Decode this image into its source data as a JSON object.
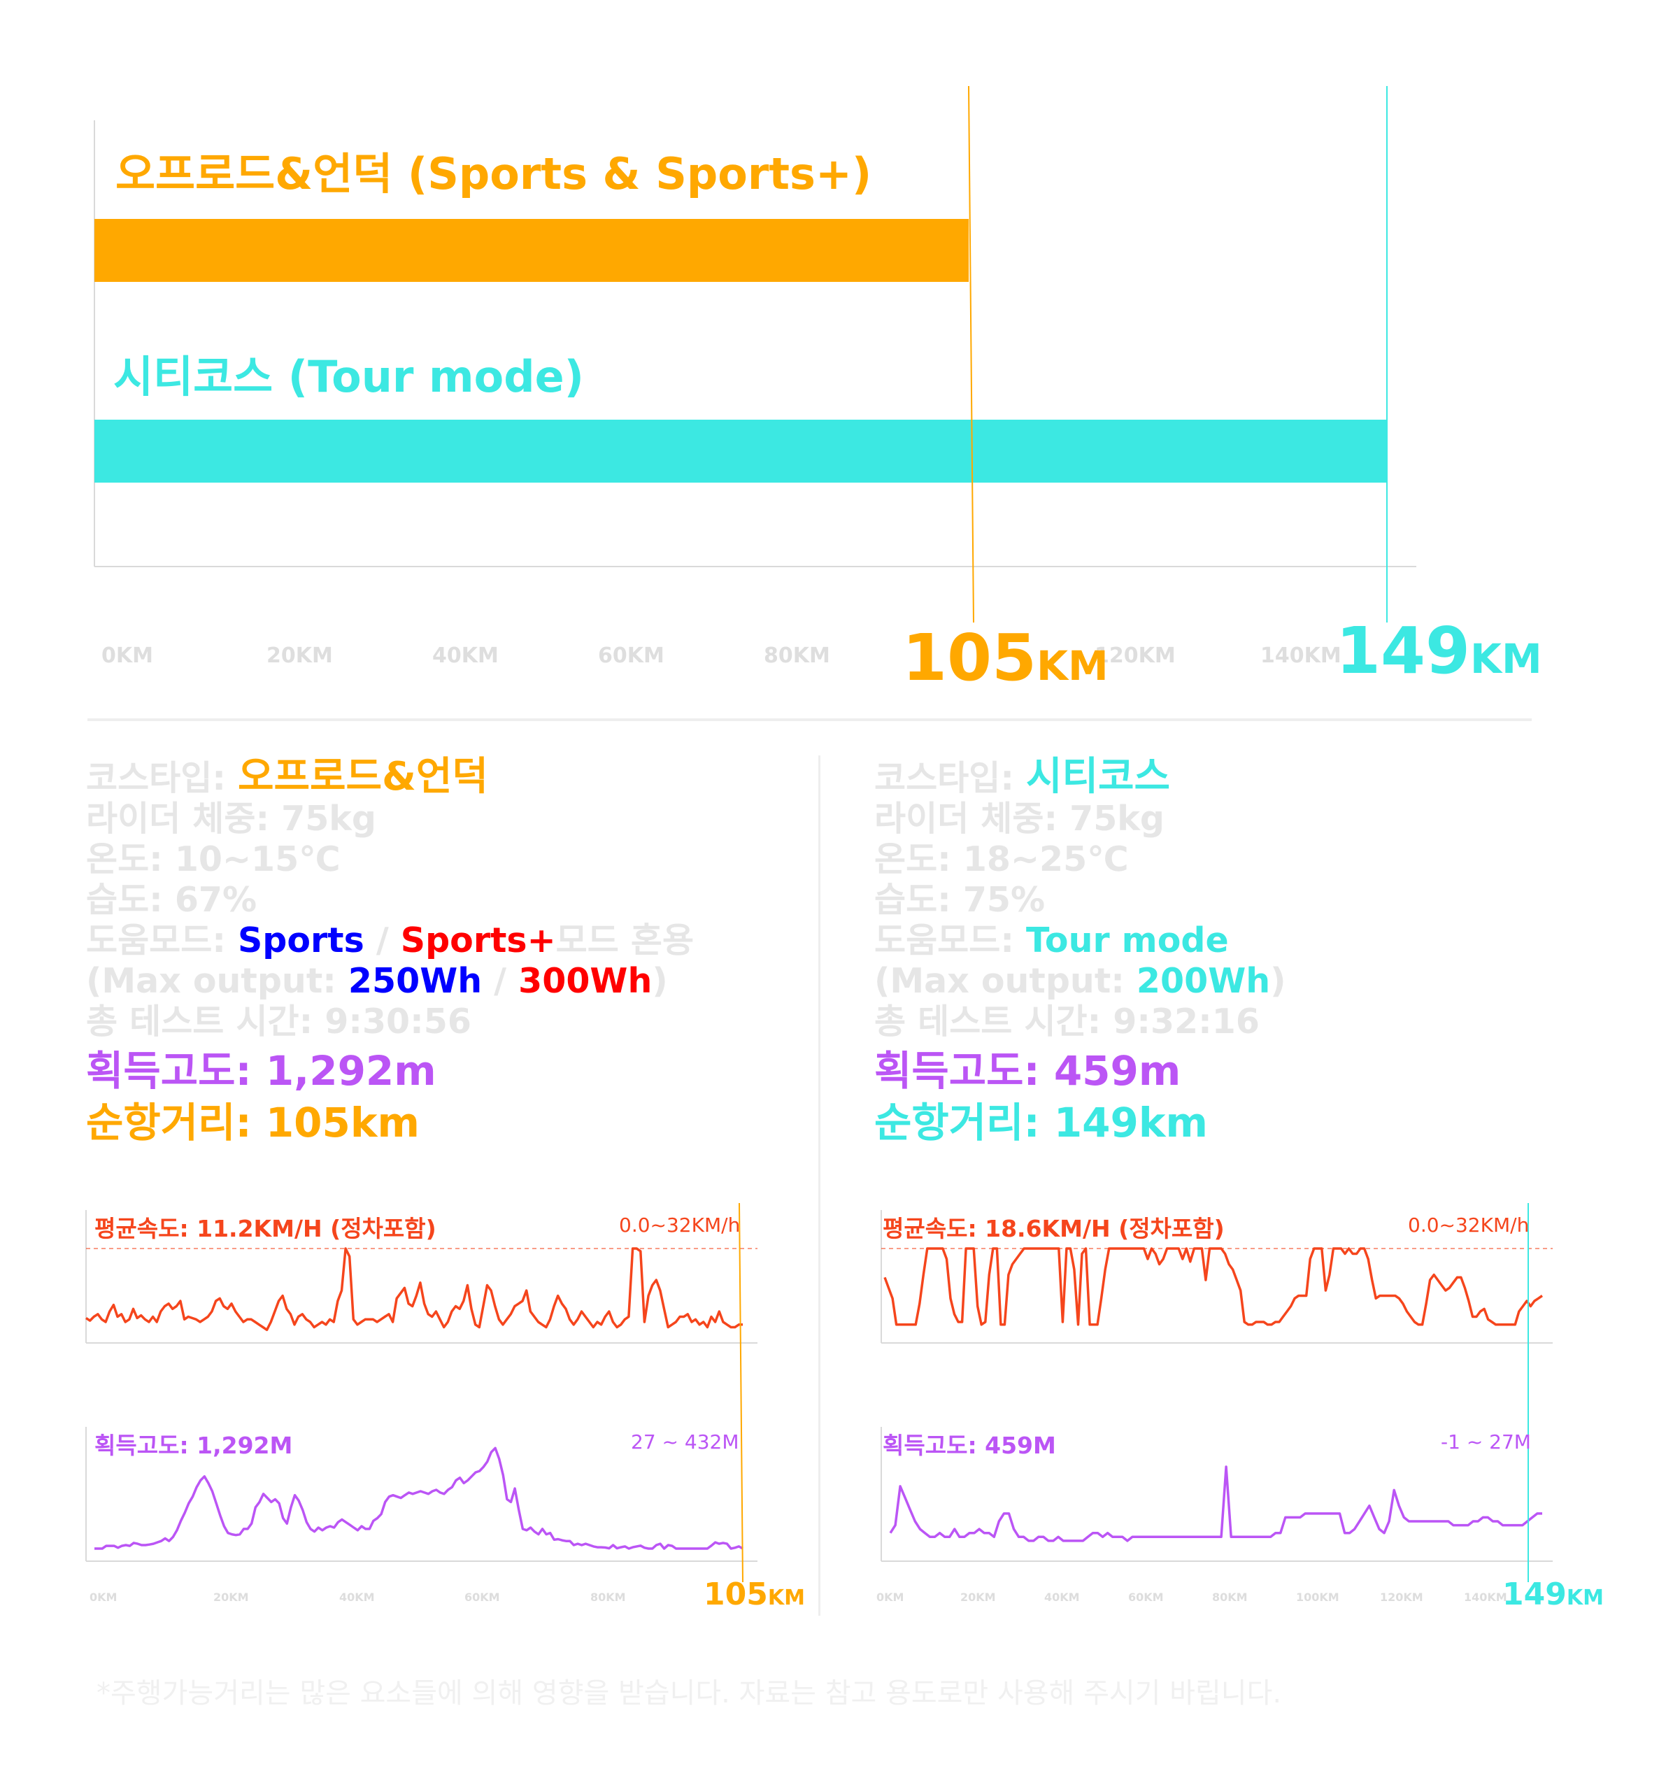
{
  "colors": {
    "offroad": "#ffa800",
    "city": "#3ce8e2",
    "sports": "#0000ff",
    "sports_plus": "#ff0000",
    "speed": "#f5451c",
    "elevation": "#bb55f5",
    "muted": "#e6e6e6",
    "axis": "#d9d9d9"
  },
  "chart_data": [
    {
      "type": "bar",
      "orientation": "horizontal",
      "categories": [
        "오프로드&언덕 (Sports & Sports+)",
        "시티코스 (Tour mode)"
      ],
      "values": [
        105,
        149
      ],
      "xlim": [
        0,
        160
      ],
      "x_ticks": [
        "0KM",
        "20KM",
        "40KM",
        "60KM",
        "80KM",
        "120KM",
        "140KM"
      ],
      "value_labels": [
        {
          "num": "105",
          "unit": "KM"
        },
        {
          "num": "149",
          "unit": "KM"
        }
      ]
    },
    {
      "type": "line",
      "title": "평균속도: 11.2KM/H (정차포함)",
      "range_label": "0.0~32KM/h",
      "ylim": [
        0,
        32
      ],
      "xlim": [
        0,
        105
      ],
      "y": [
        5.5,
        4.5,
        6,
        7,
        5,
        4,
        8,
        10.5,
        6,
        7,
        4,
        5,
        9,
        5.5,
        6.5,
        5,
        4,
        6,
        4,
        8,
        10,
        11,
        9,
        10,
        12,
        5,
        6,
        5.5,
        5,
        4,
        5,
        6,
        8,
        12,
        13,
        10,
        9,
        11,
        8,
        6,
        4,
        5,
        5,
        4,
        3,
        2,
        1,
        4,
        8,
        12,
        14,
        9,
        7,
        3,
        6,
        7,
        5,
        4,
        2,
        3,
        4,
        3,
        5,
        4,
        12,
        16,
        32,
        29,
        5,
        3,
        4,
        5,
        5,
        5,
        4,
        5,
        6,
        7,
        4,
        13,
        15,
        17,
        11,
        10,
        14,
        19,
        11,
        7,
        6,
        8,
        5,
        2,
        4,
        8,
        10,
        9,
        12,
        18,
        9,
        3,
        2,
        10,
        18,
        16,
        10,
        5,
        3,
        5,
        7,
        10,
        11,
        12,
        16,
        8,
        6,
        4,
        3,
        2,
        5,
        10,
        14,
        11,
        9,
        5,
        3,
        5,
        8,
        6,
        4,
        2,
        4,
        3,
        6,
        8,
        4,
        2,
        3,
        5,
        6,
        32,
        32,
        31,
        4,
        14,
        18,
        20,
        16,
        9,
        2,
        3,
        4,
        6,
        6,
        7,
        4,
        5,
        3,
        4,
        2,
        6,
        4,
        8,
        4,
        3,
        2,
        2,
        3,
        3
      ],
      "x_ticks": [
        "0KM",
        "20KM",
        "40KM",
        "60KM",
        "80KM"
      ],
      "end_label": {
        "num": "105",
        "unit": "KM"
      }
    },
    {
      "type": "line",
      "title": "획득고도: 1,292M",
      "range_label": "27 ~ 432M",
      "ylim": [
        27,
        432
      ],
      "xlim": [
        0,
        105
      ],
      "y": [
        27,
        27,
        27,
        37,
        37,
        37,
        30,
        37,
        40,
        37,
        48,
        45,
        40,
        40,
        42,
        45,
        50,
        55,
        65,
        55,
        70,
        95,
        130,
        160,
        195,
        220,
        255,
        280,
        295,
        270,
        240,
        195,
        150,
        110,
        85,
        80,
        77,
        80,
        100,
        100,
        120,
        180,
        200,
        230,
        215,
        200,
        210,
        195,
        140,
        120,
        180,
        225,
        205,
        170,
        125,
        100,
        90,
        105,
        95,
        105,
        110,
        105,
        125,
        135,
        125,
        115,
        105,
        95,
        110,
        100,
        100,
        130,
        140,
        155,
        200,
        220,
        225,
        220,
        215,
        225,
        235,
        230,
        235,
        240,
        235,
        230,
        240,
        245,
        235,
        230,
        245,
        255,
        280,
        290,
        270,
        280,
        295,
        310,
        315,
        330,
        350,
        385,
        400,
        360,
        300,
        210,
        200,
        250,
        170,
        100,
        95,
        105,
        90,
        80,
        100,
        80,
        85,
        60,
        62,
        58,
        55,
        55,
        40,
        45,
        40,
        45,
        40,
        35,
        32,
        32,
        31,
        28,
        40,
        28,
        32,
        35,
        27,
        32,
        35,
        38,
        30,
        27,
        27,
        40,
        45,
        27,
        40,
        37,
        27,
        27,
        27,
        27,
        27,
        27,
        27,
        27,
        27,
        38,
        50,
        45,
        48,
        45,
        27,
        30,
        35,
        27
      ]
    },
    {
      "type": "line",
      "title": "평균속도: 18.6KM/H (정차포함)",
      "range_label": "0.0~32KM/h",
      "ylim": [
        0,
        32
      ],
      "xlim": [
        0,
        149
      ],
      "y": [
        21,
        17,
        13,
        3,
        3,
        3,
        3,
        3,
        3,
        11,
        22,
        32,
        32,
        32,
        32,
        32,
        28,
        13,
        7,
        4,
        4,
        32,
        32,
        32,
        10,
        3,
        4,
        22,
        32,
        32,
        3,
        3,
        22,
        26,
        28,
        30,
        32,
        32,
        32,
        32,
        32,
        32,
        32,
        32,
        32,
        32,
        4,
        32,
        32,
        24,
        3,
        30,
        32,
        3,
        3,
        3,
        13,
        24,
        32,
        32,
        32,
        32,
        32,
        32,
        32,
        32,
        32,
        32,
        28,
        32,
        30,
        26,
        28,
        32,
        32,
        32,
        32,
        28,
        32,
        27,
        32,
        32,
        32,
        20,
        32,
        32,
        32,
        32,
        30,
        26,
        24,
        20,
        16,
        4,
        3,
        3,
        4,
        4,
        4,
        3,
        3,
        4,
        4,
        6,
        8,
        10,
        13,
        14,
        14,
        14,
        28,
        32,
        32,
        32,
        16,
        22,
        32,
        32,
        32,
        30,
        32,
        30,
        30,
        32,
        32,
        28,
        20,
        13,
        14,
        14,
        14,
        14,
        14,
        13,
        11,
        8,
        6,
        4,
        3,
        3,
        11,
        20,
        22,
        20,
        18,
        16,
        17,
        19,
        21,
        21,
        17,
        12,
        6,
        6,
        8,
        9,
        5,
        4,
        3,
        3,
        3,
        3,
        3,
        3,
        8,
        10,
        12,
        10,
        12,
        13,
        14
      ]
    },
    {
      "type": "line",
      "title": "획득고도: 459M",
      "range_label": "-1 ~ 27M",
      "ylim": [
        -1,
        27
      ],
      "xlim": [
        0,
        149
      ],
      "y": [
        3,
        5,
        15,
        12,
        9,
        6,
        4,
        3,
        2,
        2,
        3,
        2,
        2,
        4,
        2,
        2,
        3,
        3,
        4,
        3,
        3,
        2,
        6,
        8,
        8,
        4,
        2,
        2,
        1,
        1,
        2,
        2,
        1,
        1,
        2,
        1,
        1,
        1,
        1,
        1,
        2,
        3,
        3,
        2,
        3,
        2,
        2,
        2,
        1,
        2,
        2,
        2,
        2,
        2,
        2,
        2,
        2,
        2,
        2,
        2,
        2,
        2,
        2,
        2,
        2,
        2,
        2,
        2,
        20,
        2,
        2,
        2,
        2,
        2,
        2,
        2,
        2,
        2,
        3,
        3,
        7,
        7,
        7,
        7,
        8,
        8,
        8,
        8,
        8,
        8,
        8,
        8,
        3,
        3,
        4,
        6,
        8,
        10,
        7,
        4,
        3,
        6,
        14,
        10,
        7,
        6,
        6,
        6,
        6,
        6,
        6,
        6,
        6,
        6,
        5,
        5,
        5,
        5,
        6,
        6,
        7,
        7,
        6,
        6,
        5,
        5,
        5,
        5,
        5,
        6,
        7,
        8,
        8
      ]
    }
  ],
  "offroad_title": "오프로드&언덕 (Sports & Sports+)",
  "city_title": "시티코스 (Tour mode)",
  "left_info": {
    "course_label": "코스타입: ",
    "course_value": "오프로드&언덕",
    "rider": "라이더 체중: 75kg",
    "temp": "온도: 10~15℃",
    "humidity": "습도: 67%",
    "assist_label": "도움모드: ",
    "assist_sports": "Sports",
    "assist_sep": " / ",
    "assist_sports_plus": "Sports+",
    "assist_suffix": "모드 혼용",
    "max_prefix": "(Max output: ",
    "max_sports": "250Wh",
    "max_sep": " / ",
    "max_sports_plus": "300Wh",
    "max_suffix": ")",
    "total_time": "총 테스트 시간: 9:30:56",
    "elevation": "획득고도: 1,292m",
    "range": "순항거리: 105km"
  },
  "right_info": {
    "course_label": "코스타입: ",
    "course_value": "시티코스",
    "rider": "라이더 체중: 75kg",
    "temp": "온도: 18~25℃",
    "humidity": "습도: 75%",
    "assist_label": "도움모드: ",
    "assist_value": "Tour mode",
    "max_prefix": "(Max output: ",
    "max_value": "200Wh",
    "max_suffix": ")",
    "total_time": "총 테스트 시간: 9:32:16",
    "elevation": "획득고도: 459m",
    "range": "순항거리: 149km"
  },
  "left_mini_ticks": [
    "0KM",
    "20KM",
    "40KM",
    "60KM",
    "80KM"
  ],
  "right_mini_ticks": [
    "0KM",
    "20KM",
    "40KM",
    "60KM",
    "80KM",
    "100KM",
    "120KM",
    "140KM"
  ],
  "right_end_label": {
    "num": "149",
    "unit": "KM"
  },
  "footnote": "*주행가능거리는 많은 요소들에 의해 영향을 받습니다. 자료는 참고 용도로만 사용해 주시기 바립니다."
}
